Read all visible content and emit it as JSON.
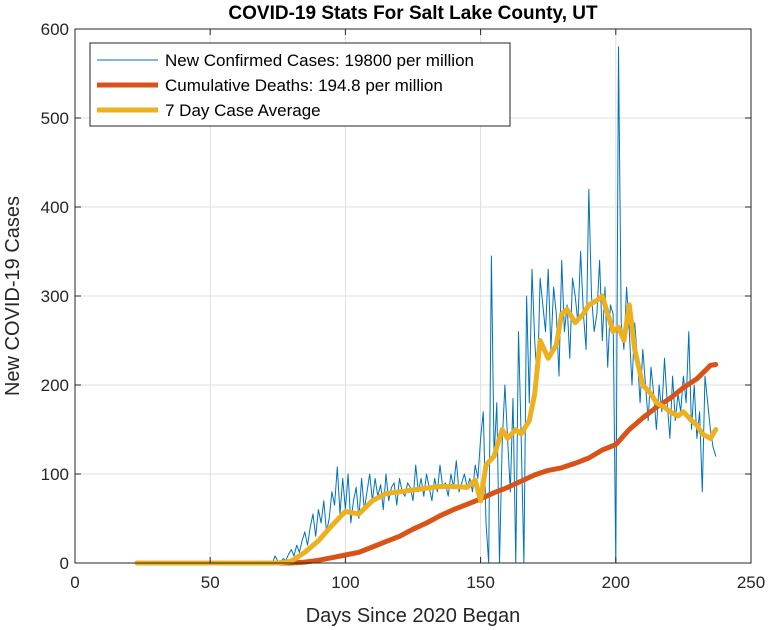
{
  "chart_data": {
    "type": "line",
    "title": "COVID-19 Stats For Salt Lake County, UT",
    "xlabel": "Days Since 2020 Began",
    "ylabel": "New COVID-19 Cases",
    "xlim": [
      0,
      250
    ],
    "ylim": [
      0,
      600
    ],
    "xticks": [
      0,
      50,
      100,
      150,
      200,
      250
    ],
    "yticks": [
      0,
      100,
      200,
      300,
      400,
      500,
      600
    ],
    "grid": true,
    "legend_position": "top-left",
    "series": [
      {
        "name": "New Confirmed Cases: 19800 per million",
        "color": "#0072BD",
        "style": "thin",
        "x": [
          23,
          30,
          40,
          50,
          60,
          70,
          73,
          74,
          75,
          76,
          77,
          78,
          79,
          80,
          81,
          82,
          83,
          84,
          85,
          86,
          87,
          88,
          89,
          90,
          91,
          92,
          93,
          94,
          95,
          96,
          97,
          98,
          99,
          100,
          101,
          102,
          103,
          104,
          105,
          106,
          107,
          108,
          109,
          110,
          111,
          112,
          113,
          114,
          115,
          116,
          117,
          118,
          119,
          120,
          121,
          122,
          123,
          124,
          125,
          126,
          127,
          128,
          129,
          130,
          131,
          132,
          133,
          134,
          135,
          136,
          137,
          138,
          139,
          140,
          141,
          142,
          143,
          144,
          145,
          146,
          147,
          148,
          149,
          150,
          151,
          152,
          153,
          154,
          155,
          156,
          157,
          158,
          159,
          160,
          161,
          162,
          163,
          164,
          165,
          166,
          167,
          168,
          169,
          170,
          171,
          172,
          173,
          174,
          175,
          176,
          177,
          178,
          179,
          180,
          181,
          182,
          183,
          184,
          185,
          186,
          187,
          188,
          189,
          190,
          191,
          192,
          193,
          194,
          195,
          196,
          197,
          198,
          199,
          200,
          201,
          202,
          203,
          204,
          205,
          206,
          207,
          208,
          209,
          210,
          211,
          212,
          213,
          214,
          215,
          216,
          217,
          218,
          219,
          220,
          221,
          222,
          223,
          224,
          225,
          226,
          227,
          228,
          229,
          230,
          231,
          232,
          233,
          234,
          235,
          236,
          237
        ],
        "values": [
          0,
          0,
          0,
          0,
          0,
          0,
          0,
          8,
          2,
          0,
          5,
          3,
          10,
          15,
          8,
          20,
          12,
          25,
          35,
          20,
          40,
          55,
          30,
          60,
          45,
          70,
          35,
          50,
          80,
          65,
          108,
          55,
          95,
          60,
          100,
          45,
          70,
          85,
          50,
          95,
          60,
          80,
          100,
          70,
          95,
          75,
          88,
          60,
          100,
          70,
          85,
          90,
          65,
          95,
          80,
          75,
          90,
          85,
          70,
          110,
          80,
          95,
          75,
          100,
          85,
          70,
          95,
          80,
          110,
          85,
          90,
          75,
          100,
          85,
          115,
          80,
          90,
          100,
          85,
          95,
          80,
          110,
          95,
          140,
          170,
          45,
          0,
          345,
          120,
          180,
          0,
          135,
          200,
          140,
          80,
          185,
          0,
          260,
          140,
          0,
          300,
          180,
          330,
          250,
          200,
          320,
          290,
          260,
          330,
          240,
          310,
          280,
          210,
          340,
          260,
          290,
          230,
          320,
          300,
          270,
          350,
          280,
          240,
          420,
          300,
          260,
          280,
          340,
          250,
          310,
          220,
          290,
          280,
          0,
          580,
          270,
          240,
          310,
          260,
          200,
          270,
          230,
          180,
          240,
          200,
          160,
          220,
          190,
          150,
          200,
          170,
          230,
          180,
          140,
          210,
          160,
          190,
          170,
          210,
          180,
          260,
          150,
          200,
          140,
          170,
          80,
          210,
          180,
          150,
          130,
          120
        ]
      },
      {
        "name": "Cumulative Deaths: 194.8 per million",
        "color": "#D95319",
        "style": "thick",
        "x": [
          23,
          50,
          75,
          80,
          85,
          90,
          95,
          100,
          105,
          110,
          115,
          120,
          125,
          130,
          135,
          140,
          145,
          150,
          155,
          160,
          165,
          170,
          175,
          180,
          185,
          190,
          195,
          200,
          205,
          210,
          215,
          220,
          225,
          230,
          235,
          237
        ],
        "values": [
          0,
          0,
          0,
          0,
          1,
          3,
          6,
          9,
          12,
          18,
          24,
          30,
          38,
          45,
          53,
          60,
          66,
          72,
          79,
          85,
          92,
          99,
          104,
          107,
          112,
          118,
          127,
          133,
          150,
          163,
          175,
          185,
          197,
          207,
          222,
          223
        ]
      },
      {
        "name": "7 Day Case Average",
        "color": "#EDB120",
        "style": "thick",
        "x": [
          23,
          40,
          60,
          75,
          80,
          85,
          90,
          95,
          100,
          105,
          110,
          115,
          120,
          125,
          130,
          135,
          140,
          145,
          148,
          150,
          152,
          155,
          158,
          160,
          163,
          165,
          168,
          170,
          172,
          175,
          178,
          180,
          182,
          185,
          188,
          190,
          193,
          195,
          197,
          199,
          201,
          203,
          205,
          207,
          210,
          213,
          215,
          218,
          220,
          223,
          225,
          228,
          230,
          232,
          235,
          237
        ],
        "values": [
          0,
          0,
          0,
          0,
          2,
          12,
          25,
          42,
          58,
          55,
          70,
          78,
          80,
          82,
          84,
          86,
          86,
          85,
          93,
          70,
          110,
          120,
          150,
          140,
          150,
          145,
          160,
          190,
          250,
          230,
          245,
          280,
          285,
          270,
          280,
          290,
          295,
          300,
          280,
          260,
          265,
          250,
          290,
          240,
          200,
          190,
          180,
          175,
          170,
          165,
          170,
          160,
          155,
          145,
          140,
          150
        ]
      }
    ]
  }
}
